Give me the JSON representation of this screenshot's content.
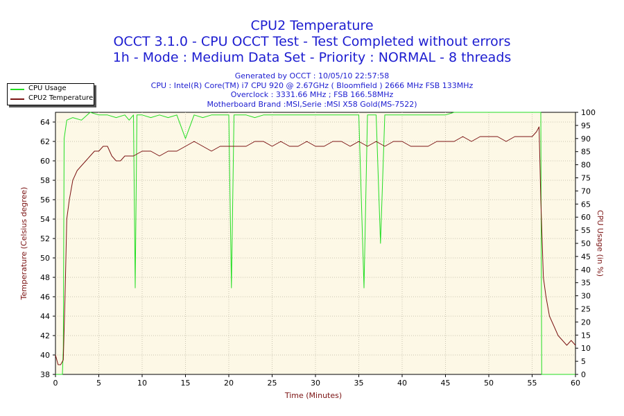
{
  "chart_data": {
    "type": "line",
    "title": "CPU2 Temperature",
    "subtitle_lines": [
      "OCCT 3.1.0 - CPU OCCT Test - Test Completed without errors",
      "1h - Mode : Medium Data Set - Priority : NORMAL - 8 threads"
    ],
    "info_lines": [
      "Generated by OCCT : 10/05/10 22:57:58",
      "CPU : Intel(R) Core(TM) i7 CPU 920 @ 2.67GHz ( Bloomfield ) 2666 MHz FSB 133MHz",
      "Overclock : 3331.66 MHz ; FSB 166.58MHz",
      "Motherboard Brand :MSI,Serie :MSI X58 Gold(MS-7522)"
    ],
    "xlabel": "Time (Minutes)",
    "ylabel_left": "Temperature (Celsius degree)",
    "ylabel_right": "CPU Usage (in %)",
    "xlim": [
      0,
      60
    ],
    "ylim_left": [
      38,
      65
    ],
    "ylim_right": [
      0,
      100
    ],
    "x_ticks": [
      "0",
      "5",
      "10",
      "15",
      "20",
      "25",
      "30",
      "35",
      "40",
      "45",
      "50",
      "55",
      "60"
    ],
    "y_left_ticks": [
      "38",
      "40",
      "42",
      "44",
      "46",
      "48",
      "50",
      "52",
      "54",
      "56",
      "58",
      "60",
      "62",
      "64"
    ],
    "y_right_ticks": [
      "0",
      "5",
      "10",
      "15",
      "20",
      "25",
      "30",
      "35",
      "40",
      "45",
      "50",
      "55",
      "60",
      "65",
      "70",
      "75",
      "80",
      "85",
      "90",
      "95",
      "100"
    ],
    "legend_position": "top-left",
    "grid": true,
    "series": [
      {
        "name": "CPU Usage",
        "axis": "right",
        "color": "#22dd22",
        "x": [
          0,
          0.8,
          0.9,
          1.0,
          1.3,
          2,
          3,
          4,
          5,
          6,
          7,
          8,
          8.5,
          9,
          9.2,
          9.4,
          10,
          11,
          12,
          13,
          14,
          15,
          16,
          17,
          18,
          19,
          20,
          20.3,
          20.6,
          21,
          22,
          23,
          24,
          25,
          26,
          27,
          28,
          29,
          30,
          31,
          32,
          33,
          34,
          35,
          35.6,
          36,
          36.4,
          37,
          37.5,
          38,
          39,
          40,
          41,
          42,
          43,
          44,
          45,
          46,
          47,
          48,
          49,
          50,
          51,
          52,
          53,
          54,
          55,
          55.6,
          56,
          56.1,
          56.3,
          60
        ],
        "y": [
          0,
          0,
          10,
          90,
          97,
          98,
          97,
          100,
          99,
          99,
          98,
          99,
          97,
          99,
          33,
          99,
          99,
          98,
          99,
          98,
          99,
          90,
          99,
          98,
          99,
          99,
          99,
          33,
          99,
          99,
          99,
          98,
          99,
          99,
          99,
          99,
          99,
          99,
          99,
          99,
          99,
          99,
          99,
          99,
          33,
          99,
          99,
          99,
          50,
          99,
          99,
          99,
          99,
          99,
          99,
          99,
          99,
          100,
          100,
          100,
          100,
          100,
          100,
          100,
          100,
          100,
          100,
          100,
          100,
          0,
          0,
          0
        ]
      },
      {
        "name": "CPU2 Temperature",
        "axis": "left",
        "color": "#7a1212",
        "x": [
          0,
          0.3,
          0.6,
          0.9,
          1.1,
          1.3,
          1.6,
          2,
          2.5,
          3,
          3.5,
          4,
          4.5,
          5,
          5.5,
          6,
          6.5,
          7,
          7.5,
          8,
          9,
          10,
          11,
          12,
          13,
          14,
          15,
          16,
          17,
          18,
          19,
          20,
          21,
          22,
          23,
          24,
          25,
          26,
          27,
          28,
          29,
          30,
          31,
          32,
          33,
          34,
          35,
          36,
          37,
          38,
          39,
          40,
          41,
          42,
          43,
          44,
          45,
          46,
          47,
          48,
          49,
          50,
          51,
          52,
          53,
          54,
          55,
          55.5,
          55.8,
          56.0,
          56.3,
          56.6,
          57,
          57.5,
          58,
          58.5,
          59,
          59.5,
          60
        ],
        "y": [
          40,
          39,
          39,
          39.5,
          46,
          54,
          56,
          58,
          59,
          59.5,
          60,
          60.5,
          61,
          61,
          61.5,
          61.5,
          60.5,
          60,
          60,
          60.5,
          60.5,
          61,
          61,
          60.5,
          61,
          61,
          61.5,
          62,
          61.5,
          61,
          61.5,
          61.5,
          61.5,
          61.5,
          62,
          62,
          61.5,
          62,
          61.5,
          61.5,
          62,
          61.5,
          61.5,
          62,
          62,
          61.5,
          62,
          61.5,
          62,
          61.5,
          62,
          62,
          61.5,
          61.5,
          61.5,
          62,
          62,
          62,
          62.5,
          62,
          62.5,
          62.5,
          62.5,
          62,
          62.5,
          62.5,
          62.5,
          63,
          63.5,
          56,
          48,
          46,
          44,
          43,
          42,
          41.5,
          41,
          41.5,
          41
        ]
      }
    ]
  }
}
